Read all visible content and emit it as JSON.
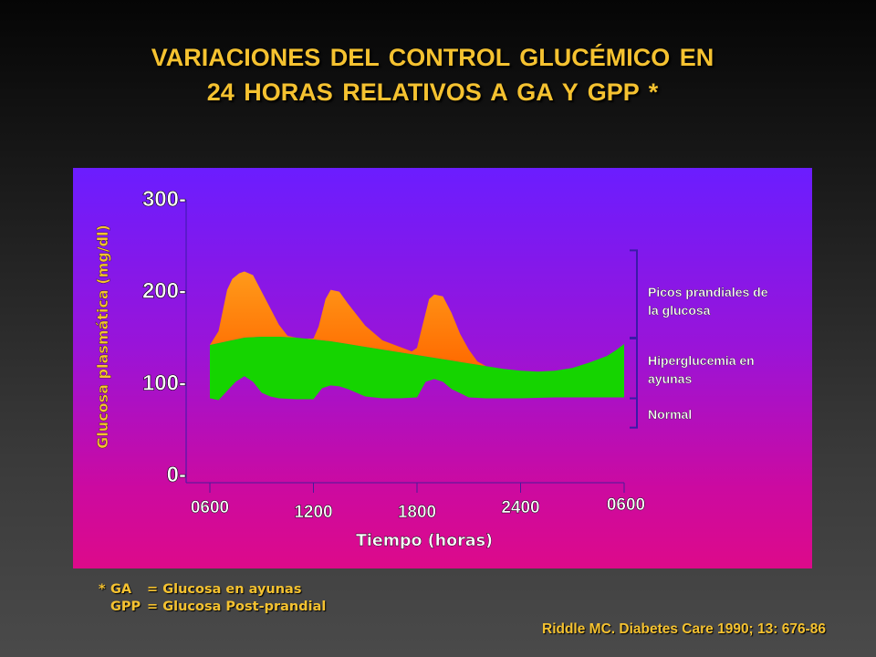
{
  "slide": {
    "title_line1": "VARIACIONES DEL CONTROL GLUCÉMICO EN",
    "title_line2": "24 HORAS RELATIVOS A GA Y GPP *",
    "footnotes": [
      {
        "marker": "*",
        "abbr": "GA",
        "text": "= Glucosa en ayunas"
      },
      {
        "marker": "",
        "abbr": "GPP",
        "text": "= Glucosa Post-prandial"
      }
    ],
    "citation": "Riddle MC. Diabetes Care 1990; 13: 676-86"
  },
  "colors": {
    "title": "#f5c230",
    "prandial_top": "#ff9a1a",
    "prandial_bottom": "#ff6a00",
    "fasting": "#15d400",
    "panel_top": "#6b1dff",
    "panel_bottom": "#dd0a8a"
  },
  "chart_data": {
    "type": "area",
    "xlabel": "Tiempo (horas)",
    "ylabel": "Glucosa plasmática (mg/dl)",
    "ylim": [
      0,
      300
    ],
    "yticks": [
      0,
      100,
      200,
      300
    ],
    "ytick_labels": [
      "0-",
      "100-",
      "200-",
      "300-"
    ],
    "xlim": [
      0,
      24
    ],
    "xticks": [
      0,
      6,
      12,
      18,
      24
    ],
    "xtick_labels": [
      "0600",
      "1200",
      "1800",
      "2400",
      "0600"
    ],
    "x_unit": "hours since 0600",
    "series": [
      {
        "key": "normal",
        "x": [
          0,
          0.5,
          1.0,
          1.5,
          2.0,
          2.5,
          3.0,
          3.5,
          4.0,
          5.0,
          6.0,
          6.5,
          7.0,
          7.5,
          8.0,
          9.0,
          10.0,
          11.0,
          12.0,
          12.5,
          13.0,
          13.5,
          14.0,
          15.0,
          16.0,
          18.0,
          20.0,
          22.0,
          24.0
        ],
        "values": [
          82,
          80,
          90,
          100,
          106,
          100,
          88,
          84,
          82,
          81,
          81,
          93,
          96,
          95,
          92,
          84,
          82,
          82,
          83,
          100,
          103,
          100,
          92,
          83,
          82,
          82,
          83,
          83,
          83
        ]
      },
      {
        "key": "fasting",
        "x": [
          0,
          1,
          2,
          3,
          4,
          5,
          6,
          7,
          8,
          9,
          10,
          11,
          12,
          13,
          14,
          15,
          16,
          17,
          18,
          19,
          20,
          21,
          22,
          23,
          23.5,
          24
        ],
        "values": [
          140,
          144,
          148,
          149,
          149,
          148,
          146,
          144,
          141,
          138,
          135,
          132,
          129,
          126,
          123,
          120,
          117,
          114,
          112,
          111,
          112,
          115,
          121,
          128,
          134,
          141
        ]
      },
      {
        "key": "prandial",
        "x": [
          0,
          0.5,
          1.0,
          1.3,
          1.7,
          2.0,
          2.5,
          3.0,
          3.5,
          4.0,
          4.5,
          5.0,
          5.5,
          6.0,
          6.3,
          6.7,
          7.0,
          7.5,
          8.0,
          9.0,
          10.0,
          11.0,
          11.7,
          12.0,
          12.3,
          12.7,
          13.0,
          13.5,
          14.0,
          14.5,
          15.0,
          15.5,
          16.0
        ],
        "values": [
          140,
          155,
          200,
          212,
          218,
          220,
          216,
          198,
          180,
          162,
          150,
          148,
          147,
          147,
          160,
          190,
          200,
          198,
          185,
          161,
          145,
          138,
          133,
          137,
          160,
          190,
          195,
          193,
          175,
          152,
          135,
          122,
          117
        ]
      }
    ],
    "annotations": [
      {
        "key": "picos",
        "text": "Picos prandiales de la glucosa",
        "lines": [
          "Picos prandiales de",
          "la glucosa"
        ],
        "bracket_range": [
          148,
          243
        ]
      },
      {
        "key": "hiper",
        "text": "Hiperglucemia en ayunas",
        "lines": [
          "Hiperglucemia en",
          "ayunas"
        ],
        "bracket_range": [
          82,
          147
        ]
      },
      {
        "key": "normal",
        "text": "Normal",
        "lines": [
          "Normal"
        ],
        "bracket_range": [
          50,
          82
        ]
      }
    ],
    "grid": false,
    "legend": "right-side bracketed labels"
  }
}
